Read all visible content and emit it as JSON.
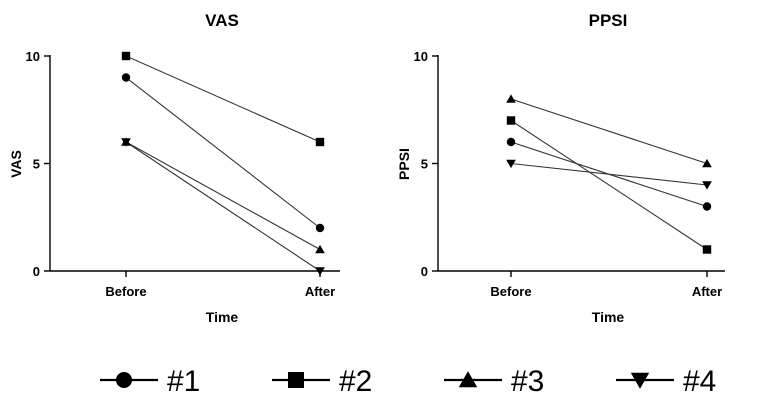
{
  "chart_data": [
    {
      "type": "line",
      "title": "VAS",
      "xlabel": "Time",
      "ylabel": "VAS",
      "categories": [
        "Before",
        "After"
      ],
      "ylim": [
        0,
        10
      ],
      "yticks": [
        "0",
        "5",
        "10"
      ],
      "series": [
        {
          "name": "#1",
          "marker": "circle",
          "values": [
            9,
            2
          ]
        },
        {
          "name": "#2",
          "marker": "square",
          "values": [
            10,
            6
          ]
        },
        {
          "name": "#3",
          "marker": "triangle-up",
          "values": [
            6,
            1
          ]
        },
        {
          "name": "#4",
          "marker": "triangle-down",
          "values": [
            6,
            0
          ]
        }
      ]
    },
    {
      "type": "line",
      "title": "PPSI",
      "xlabel": "Time",
      "ylabel": "PPSI",
      "categories": [
        "Before",
        "After"
      ],
      "ylim": [
        0,
        10
      ],
      "yticks": [
        "0",
        "5",
        "10"
      ],
      "series": [
        {
          "name": "#1",
          "marker": "circle",
          "values": [
            6,
            3
          ]
        },
        {
          "name": "#2",
          "marker": "square",
          "values": [
            7,
            1
          ]
        },
        {
          "name": "#3",
          "marker": "triangle-up",
          "values": [
            8,
            5
          ]
        },
        {
          "name": "#4",
          "marker": "triangle-down",
          "values": [
            5,
            4
          ]
        }
      ]
    }
  ],
  "legend": {
    "placement": "bottom",
    "items": [
      {
        "label": "#1",
        "marker": "circle"
      },
      {
        "label": "#2",
        "marker": "square"
      },
      {
        "label": "#3",
        "marker": "triangle-up"
      },
      {
        "label": "#4",
        "marker": "triangle-down"
      }
    ]
  }
}
